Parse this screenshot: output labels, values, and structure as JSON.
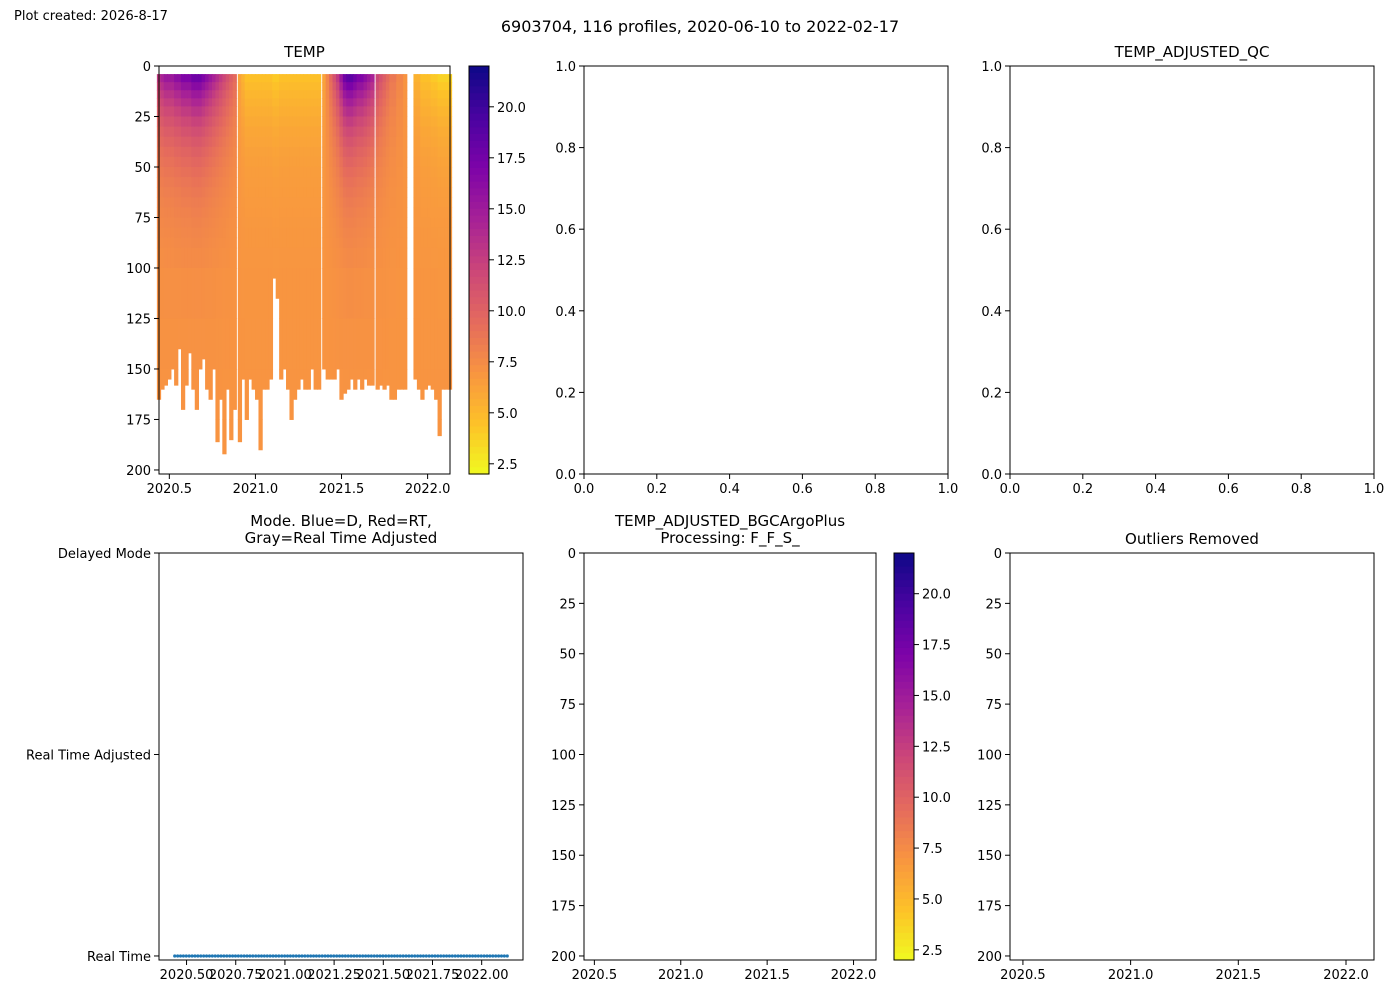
{
  "created_text": "Plot created: 2026-8-17",
  "suptitle": "6903704, 116 profiles, 2020-06-10 to 2022-02-17",
  "chart_data": [
    {
      "panel": "temp",
      "type": "heatmap",
      "title": "TEMP",
      "x_ticks": [
        "2020.5",
        "2021.0",
        "2021.5",
        "2022.0"
      ],
      "x_tick_values": [
        2020.5,
        2021.0,
        2021.5,
        2022.0
      ],
      "xlim": [
        2020.44,
        2022.13
      ],
      "y_ticks": [
        "0",
        "25",
        "50",
        "75",
        "100",
        "125",
        "150",
        "175",
        "200"
      ],
      "y_tick_values": [
        0,
        25,
        50,
        75,
        100,
        125,
        150,
        175,
        200
      ],
      "ylim": [
        202,
        0
      ],
      "y_inverted": true,
      "colormap": "plasma_r",
      "colorbar_ticks": [
        "2.5",
        "5.0",
        "7.5",
        "10.0",
        "12.5",
        "15.0",
        "17.5",
        "20.0"
      ],
      "colorbar_values": [
        2.5,
        5.0,
        7.5,
        10.0,
        12.5,
        15.0,
        17.5,
        20.0
      ],
      "colorbar_range": [
        2.0,
        22.0
      ],
      "profile_start_depth": 4,
      "profiles": [
        {
          "t": 2020.44,
          "max": 165,
          "s": 14,
          "d": 7
        },
        {
          "t": 2020.46,
          "max": 160,
          "s": 16,
          "d": 7
        },
        {
          "t": 2020.48,
          "max": 158,
          "s": 17,
          "d": 7
        },
        {
          "t": 2020.5,
          "max": 155,
          "s": 17,
          "d": 7
        },
        {
          "t": 2020.52,
          "max": 150,
          "s": 17,
          "d": 7
        },
        {
          "t": 2020.54,
          "max": 158,
          "s": 18,
          "d": 7
        },
        {
          "t": 2020.56,
          "max": 140,
          "s": 18,
          "d": 7
        },
        {
          "t": 2020.58,
          "max": 170,
          "s": 19,
          "d": 7
        },
        {
          "t": 2020.6,
          "max": 158,
          "s": 19,
          "d": 7
        },
        {
          "t": 2020.62,
          "max": 142,
          "s": 19,
          "d": 7
        },
        {
          "t": 2020.64,
          "max": 160,
          "s": 20,
          "d": 7
        },
        {
          "t": 2020.66,
          "max": 170,
          "s": 20,
          "d": 7
        },
        {
          "t": 2020.68,
          "max": 150,
          "s": 20,
          "d": 7
        },
        {
          "t": 2020.7,
          "max": 145,
          "s": 19,
          "d": 7
        },
        {
          "t": 2020.72,
          "max": 160,
          "s": 18,
          "d": 7
        },
        {
          "t": 2020.74,
          "max": 165,
          "s": 17,
          "d": 7
        },
        {
          "t": 2020.76,
          "max": 150,
          "s": 16,
          "d": 7
        },
        {
          "t": 2020.78,
          "max": 186,
          "s": 15,
          "d": 7
        },
        {
          "t": 2020.8,
          "max": 165,
          "s": 14,
          "d": 7
        },
        {
          "t": 2020.82,
          "max": 192,
          "s": 13,
          "d": 7
        },
        {
          "t": 2020.84,
          "max": 160,
          "s": 12,
          "d": 7
        },
        {
          "t": 2020.86,
          "max": 185,
          "s": 11,
          "d": 7
        },
        {
          "t": 2020.88,
          "max": 170,
          "s": 10,
          "d": 7
        },
        {
          "t": 2020.91,
          "max": 186,
          "s": 6,
          "d": 7
        },
        {
          "t": 2020.93,
          "max": 155,
          "s": 5,
          "d": 7
        },
        {
          "t": 2020.95,
          "max": 175,
          "s": 4,
          "d": 7
        },
        {
          "t": 2020.97,
          "max": 155,
          "s": 4,
          "d": 7
        },
        {
          "t": 2020.99,
          "max": 160,
          "s": 4,
          "d": 7
        },
        {
          "t": 2021.01,
          "max": 165,
          "s": 4,
          "d": 7
        },
        {
          "t": 2021.03,
          "max": 190,
          "s": 4,
          "d": 7
        },
        {
          "t": 2021.05,
          "max": 160,
          "s": 4,
          "d": 7
        },
        {
          "t": 2021.07,
          "max": 160,
          "s": 4,
          "d": 7
        },
        {
          "t": 2021.09,
          "max": 155,
          "s": 4,
          "d": 7
        },
        {
          "t": 2021.11,
          "max": 105,
          "s": 3.5,
          "d": 7
        },
        {
          "t": 2021.13,
          "max": 115,
          "s": 3.5,
          "d": 7
        },
        {
          "t": 2021.15,
          "max": 155,
          "s": 4,
          "d": 7
        },
        {
          "t": 2021.17,
          "max": 150,
          "s": 4,
          "d": 7
        },
        {
          "t": 2021.19,
          "max": 160,
          "s": 4,
          "d": 7
        },
        {
          "t": 2021.21,
          "max": 175,
          "s": 4,
          "d": 7
        },
        {
          "t": 2021.23,
          "max": 165,
          "s": 4,
          "d": 7
        },
        {
          "t": 2021.25,
          "max": 160,
          "s": 4,
          "d": 7
        },
        {
          "t": 2021.27,
          "max": 155,
          "s": 4,
          "d": 7
        },
        {
          "t": 2021.29,
          "max": 160,
          "s": 4,
          "d": 7
        },
        {
          "t": 2021.31,
          "max": 160,
          "s": 4,
          "d": 7
        },
        {
          "t": 2021.33,
          "max": 150,
          "s": 4,
          "d": 7
        },
        {
          "t": 2021.35,
          "max": 160,
          "s": 4,
          "d": 7
        },
        {
          "t": 2021.37,
          "max": 160,
          "s": 4,
          "d": 7
        },
        {
          "t": 2021.4,
          "max": 150,
          "s": 6,
          "d": 7
        },
        {
          "t": 2021.42,
          "max": 155,
          "s": 8,
          "d": 7
        },
        {
          "t": 2021.44,
          "max": 155,
          "s": 10,
          "d": 7
        },
        {
          "t": 2021.46,
          "max": 155,
          "s": 12,
          "d": 7
        },
        {
          "t": 2021.48,
          "max": 150,
          "s": 14,
          "d": 7
        },
        {
          "t": 2021.5,
          "max": 165,
          "s": 17,
          "d": 7
        },
        {
          "t": 2021.52,
          "max": 162,
          "s": 20,
          "d": 7
        },
        {
          "t": 2021.54,
          "max": 160,
          "s": 21,
          "d": 7
        },
        {
          "t": 2021.56,
          "max": 155,
          "s": 21,
          "d": 7
        },
        {
          "t": 2021.58,
          "max": 160,
          "s": 20,
          "d": 7
        },
        {
          "t": 2021.6,
          "max": 155,
          "s": 19,
          "d": 7
        },
        {
          "t": 2021.62,
          "max": 160,
          "s": 19,
          "d": 7
        },
        {
          "t": 2021.64,
          "max": 155,
          "s": 18,
          "d": 7
        },
        {
          "t": 2021.66,
          "max": 158,
          "s": 17,
          "d": 7
        },
        {
          "t": 2021.68,
          "max": 158,
          "s": 16,
          "d": 7
        },
        {
          "t": 2021.71,
          "max": 160,
          "s": 13,
          "d": 7
        },
        {
          "t": 2021.73,
          "max": 158,
          "s": 12,
          "d": 7
        },
        {
          "t": 2021.75,
          "max": 160,
          "s": 11,
          "d": 7
        },
        {
          "t": 2021.77,
          "max": 158,
          "s": 10,
          "d": 7
        },
        {
          "t": 2021.79,
          "max": 165,
          "s": 9,
          "d": 7
        },
        {
          "t": 2021.81,
          "max": 165,
          "s": 9,
          "d": 7
        },
        {
          "t": 2021.83,
          "max": 160,
          "s": 8,
          "d": 7
        },
        {
          "t": 2021.85,
          "max": 160,
          "s": 8,
          "d": 7
        },
        {
          "t": 2021.87,
          "max": 160,
          "s": 7,
          "d": 7
        },
        {
          "t": 2021.93,
          "max": 155,
          "s": 5,
          "d": 7
        },
        {
          "t": 2021.95,
          "max": 160,
          "s": 5,
          "d": 7
        },
        {
          "t": 2021.97,
          "max": 165,
          "s": 4,
          "d": 7
        },
        {
          "t": 2021.99,
          "max": 160,
          "s": 4,
          "d": 7
        },
        {
          "t": 2022.01,
          "max": 158,
          "s": 4,
          "d": 7
        },
        {
          "t": 2022.03,
          "max": 160,
          "s": 3.5,
          "d": 7
        },
        {
          "t": 2022.05,
          "max": 165,
          "s": 3.5,
          "d": 7
        },
        {
          "t": 2022.07,
          "max": 183,
          "s": 3,
          "d": 7
        },
        {
          "t": 2022.09,
          "max": 160,
          "s": 3,
          "d": 7
        },
        {
          "t": 2022.11,
          "max": 160,
          "s": 3,
          "d": 7
        },
        {
          "t": 2022.13,
          "max": 160,
          "s": 3,
          "d": 7
        }
      ]
    },
    {
      "panel": "empty-top-middle",
      "type": "scatter",
      "title": "",
      "x_ticks": [
        "0.0",
        "0.2",
        "0.4",
        "0.6",
        "0.8",
        "1.0"
      ],
      "x_tick_values": [
        0,
        0.2,
        0.4,
        0.6,
        0.8,
        1.0
      ],
      "y_ticks": [
        "0.0",
        "0.2",
        "0.4",
        "0.6",
        "0.8",
        "1.0"
      ],
      "y_tick_values": [
        0,
        0.2,
        0.4,
        0.6,
        0.8,
        1.0
      ],
      "xlim": [
        0,
        1
      ],
      "ylim": [
        0,
        1
      ]
    },
    {
      "panel": "temp-adjusted-qc",
      "type": "scatter",
      "title": "TEMP_ADJUSTED_QC",
      "x_ticks": [
        "0.0",
        "0.2",
        "0.4",
        "0.6",
        "0.8",
        "1.0"
      ],
      "x_tick_values": [
        0,
        0.2,
        0.4,
        0.6,
        0.8,
        1.0
      ],
      "y_ticks": [
        "0.0",
        "0.2",
        "0.4",
        "0.6",
        "0.8",
        "1.0"
      ],
      "y_tick_values": [
        0,
        0.2,
        0.4,
        0.6,
        0.8,
        1.0
      ],
      "xlim": [
        0,
        1
      ],
      "ylim": [
        0,
        1
      ]
    },
    {
      "panel": "mode",
      "type": "scatter",
      "title_lines": [
        "Mode. Blue=D, Red=RT,",
        "Gray=Real Time Adjusted"
      ],
      "x_ticks": [
        "2020.50",
        "2020.75",
        "2021.00",
        "2021.25",
        "2021.50",
        "2021.75",
        "2022.00"
      ],
      "x_tick_values": [
        2020.5,
        2020.75,
        2021.0,
        2021.25,
        2021.5,
        2021.75,
        2022.0
      ],
      "xlim": [
        2020.36,
        2022.21
      ],
      "y_ticks": [
        "Real Time",
        "Real Time Adjusted",
        "Delayed Mode"
      ],
      "y_tick_values": [
        0,
        1,
        2
      ],
      "ylim": [
        -0.02,
        2.0
      ],
      "point_color": "#1f77b4",
      "x_range": [
        2020.44,
        2022.13
      ],
      "count": 116,
      "y": 0
    },
    {
      "panel": "temp-adjusted-bgc",
      "type": "heatmap",
      "title_lines": [
        "TEMP_ADJUSTED_BGCArgoPlus",
        "Processing: F_F_S_"
      ],
      "x_ticks": [
        "2020.5",
        "2021.0",
        "2021.5",
        "2022.0"
      ],
      "x_tick_values": [
        2020.5,
        2021.0,
        2021.5,
        2022.0
      ],
      "xlim": [
        2020.44,
        2022.13
      ],
      "y_ticks": [
        "0",
        "25",
        "50",
        "75",
        "100",
        "125",
        "150",
        "175",
        "200"
      ],
      "y_tick_values": [
        0,
        25,
        50,
        75,
        100,
        125,
        150,
        175,
        200
      ],
      "ylim": [
        202,
        0
      ],
      "colormap": "plasma_r",
      "colorbar_ticks": [
        "2.5",
        "5.0",
        "7.5",
        "10.0",
        "12.5",
        "15.0",
        "17.5",
        "20.0"
      ],
      "colorbar_values": [
        2.5,
        5.0,
        7.5,
        10.0,
        12.5,
        15.0,
        17.5,
        20.0
      ],
      "colorbar_range": [
        2.0,
        22.0
      ]
    },
    {
      "panel": "outliers-removed",
      "type": "heatmap",
      "title": "Outliers Removed",
      "x_ticks": [
        "2020.5",
        "2021.0",
        "2021.5",
        "2022.0"
      ],
      "x_tick_values": [
        2020.5,
        2021.0,
        2021.5,
        2022.0
      ],
      "xlim": [
        2020.44,
        2022.13
      ],
      "y_ticks": [
        "0",
        "25",
        "50",
        "75",
        "100",
        "125",
        "150",
        "175",
        "200"
      ],
      "y_tick_values": [
        0,
        25,
        50,
        75,
        100,
        125,
        150,
        175,
        200
      ],
      "ylim": [
        202,
        0
      ]
    }
  ]
}
